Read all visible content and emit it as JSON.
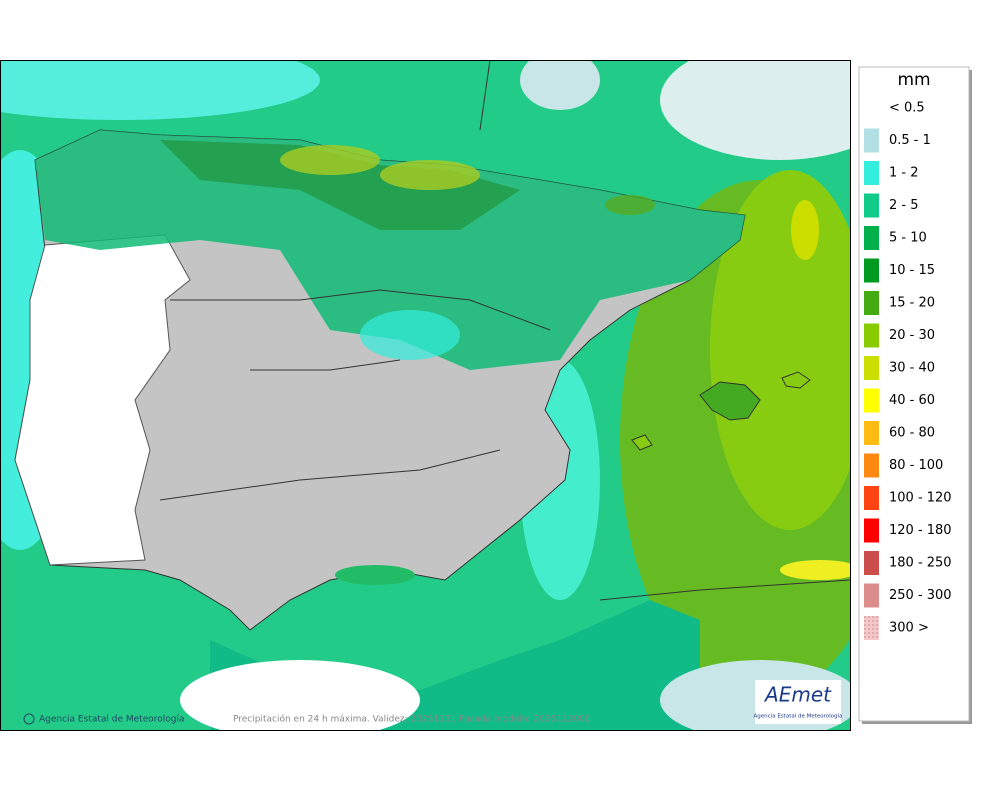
{
  "legend": {
    "title": "mm",
    "items": [
      {
        "label": "< 0.5",
        "color": "#ffffff"
      },
      {
        "label": "0.5 - 1",
        "color": "#b2dfe3"
      },
      {
        "label": "1 - 2",
        "color": "#33eedd"
      },
      {
        "label": "2 - 5",
        "color": "#11cc88"
      },
      {
        "label": "5 - 10",
        "color": "#00b04a"
      },
      {
        "label": "10 - 15",
        "color": "#009a20"
      },
      {
        "label": "15 - 20",
        "color": "#44aa11"
      },
      {
        "label": "20 - 30",
        "color": "#88cc00"
      },
      {
        "label": "30 - 40",
        "color": "#ccdd00"
      },
      {
        "label": "40 - 60",
        "color": "#ffff00"
      },
      {
        "label": "60 - 80",
        "color": "#ffbb11"
      },
      {
        "label": "80 - 100",
        "color": "#ff8811"
      },
      {
        "label": "100 - 120",
        "color": "#ff4411"
      },
      {
        "label": "120 - 180",
        "color": "#ff0000"
      },
      {
        "label": "180 - 250",
        "color": "#cc4c4c"
      },
      {
        "label": "250 - 300",
        "color": "#dd8c8c"
      },
      {
        "label": "300 >",
        "color": "#f2c8c8"
      }
    ]
  },
  "footer": {
    "credit": "Agencia Estatal de Meteorología",
    "caption": "Precipitación en 24 h máxima. Validez: 20251131 Pasada modelo: 2025112000"
  },
  "logo": {
    "name": "AEmet",
    "subtitle": "Agencia Estatal de Meteorología"
  }
}
